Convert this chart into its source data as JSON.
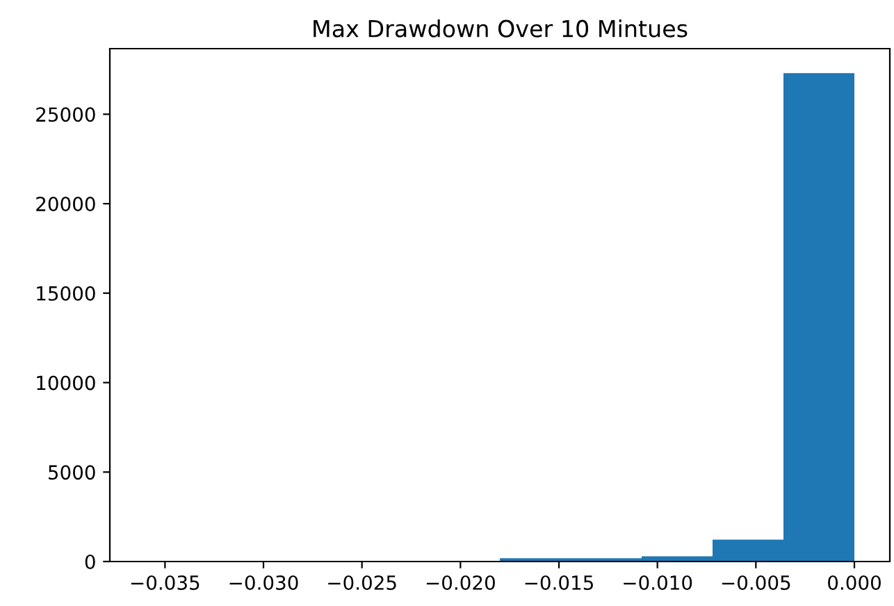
{
  "chart_data": {
    "type": "histogram",
    "title": "Max Drawdown Over 10 Mintues",
    "bins": [
      -0.036,
      -0.0324,
      -0.0288,
      -0.0252,
      -0.0216,
      -0.018,
      -0.0144,
      -0.0108,
      -0.0072,
      -0.0036,
      0.0
    ],
    "values": [
      0,
      0,
      0,
      0,
      0,
      180,
      180,
      290,
      1220,
      27300
    ],
    "color": "#1f77b4",
    "xlim": [
      -0.0378,
      0.0018
    ],
    "xticks": [
      {
        "value": -0.035,
        "label": "−0.035"
      },
      {
        "value": -0.03,
        "label": "−0.030"
      },
      {
        "value": -0.025,
        "label": "−0.025"
      },
      {
        "value": -0.02,
        "label": "−0.020"
      },
      {
        "value": -0.015,
        "label": "−0.015"
      },
      {
        "value": -0.01,
        "label": "−0.010"
      },
      {
        "value": -0.005,
        "label": "−0.005"
      },
      {
        "value": 0,
        "label": "0.000"
      }
    ],
    "ylim": [
      0,
      28665
    ],
    "yticks": [
      0,
      5000,
      10000,
      15000,
      20000,
      25000
    ],
    "grid": false
  }
}
